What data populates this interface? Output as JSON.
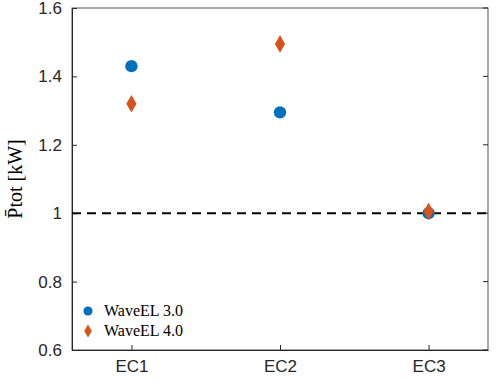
{
  "chart_data": {
    "type": "scatter",
    "categories": [
      "EC1",
      "EC2",
      "EC3"
    ],
    "series": [
      {
        "name": "WaveEL 3.0",
        "color": "#0072bd",
        "marker": "circle",
        "values": [
          1.43,
          1.295,
          1.0
        ]
      },
      {
        "name": "WaveEL 4.0",
        "color": "#d95319",
        "marker": "diamond",
        "values": [
          1.32,
          1.495,
          1.005
        ]
      }
    ],
    "y_label": "P̄tot [kW]",
    "ylim": [
      0.6,
      1.6
    ],
    "yticks": [
      0.6,
      0.8,
      1,
      1.2,
      1.4,
      1.6
    ],
    "reference_line": {
      "value": 1,
      "line_style": "dashed"
    },
    "legend": "lower left"
  }
}
